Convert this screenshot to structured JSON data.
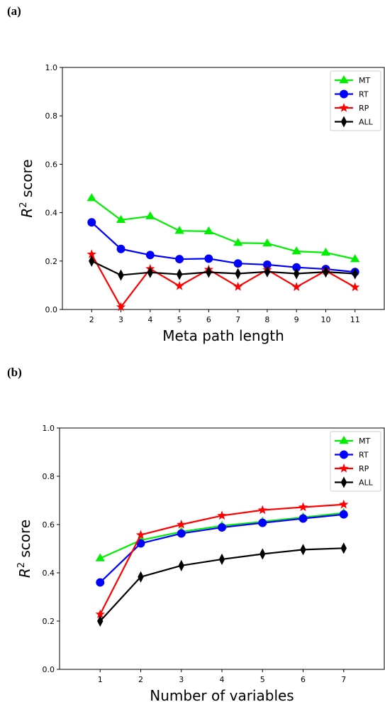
{
  "panels": {
    "a": {
      "label": "(a)"
    },
    "b": {
      "label": "(b)"
    }
  },
  "chart_data": [
    {
      "type": "line",
      "xlabel": "Meta path length",
      "ylabel": "R² score",
      "ylabel_main": "R",
      "ylabel_sup": "2",
      "ylabel_rest": " score",
      "x": [
        2,
        3,
        4,
        5,
        6,
        7,
        8,
        9,
        10,
        11
      ],
      "xlim": [
        1,
        12
      ],
      "ylim": [
        0,
        1
      ],
      "yticks": [
        "0.0",
        "0.2",
        "0.4",
        "0.6",
        "0.8",
        "1.0"
      ],
      "grid": false,
      "legend_position": "top-right",
      "series": [
        {
          "name": "MT",
          "color": "#00ee00",
          "marker": "triangle",
          "values": [
            0.46,
            0.37,
            0.385,
            0.325,
            0.323,
            0.275,
            0.273,
            0.24,
            0.235,
            0.208
          ]
        },
        {
          "name": "RT",
          "color": "#0000ff",
          "marker": "circle",
          "values": [
            0.36,
            0.25,
            0.225,
            0.208,
            0.21,
            0.19,
            0.185,
            0.174,
            0.167,
            0.155
          ]
        },
        {
          "name": "RP",
          "color": "#ff0000",
          "marker": "star",
          "values": [
            0.228,
            0.01,
            0.168,
            0.097,
            0.165,
            0.094,
            0.164,
            0.093,
            0.16,
            0.092
          ]
        },
        {
          "name": "ALL",
          "color": "#000000",
          "marker": "diamond",
          "values": [
            0.2,
            0.142,
            0.153,
            0.145,
            0.154,
            0.148,
            0.156,
            0.148,
            0.155,
            0.148
          ]
        }
      ]
    },
    {
      "type": "line",
      "xlabel": "Number of variables",
      "ylabel": "R² score",
      "ylabel_main": "R",
      "ylabel_sup": "2",
      "ylabel_rest": " score",
      "x": [
        1,
        2,
        3,
        4,
        5,
        6,
        7
      ],
      "xlim": [
        0,
        8
      ],
      "ylim": [
        0,
        1
      ],
      "yticks": [
        "0.0",
        "0.2",
        "0.4",
        "0.6",
        "0.8",
        "1.0"
      ],
      "grid": false,
      "legend_position": "top-right",
      "series": [
        {
          "name": "MT",
          "color": "#00ee00",
          "marker": "triangle",
          "values": [
            0.46,
            0.535,
            0.57,
            0.595,
            0.612,
            0.63,
            0.648
          ]
        },
        {
          "name": "RT",
          "color": "#0000ff",
          "marker": "circle",
          "values": [
            0.36,
            0.522,
            0.563,
            0.588,
            0.607,
            0.625,
            0.642
          ]
        },
        {
          "name": "RP",
          "color": "#ff0000",
          "marker": "star",
          "values": [
            0.228,
            0.557,
            0.6,
            0.637,
            0.66,
            0.672,
            0.683
          ]
        },
        {
          "name": "ALL",
          "color": "#000000",
          "marker": "diamond",
          "values": [
            0.2,
            0.383,
            0.43,
            0.456,
            0.478,
            0.496,
            0.502
          ]
        }
      ]
    }
  ]
}
